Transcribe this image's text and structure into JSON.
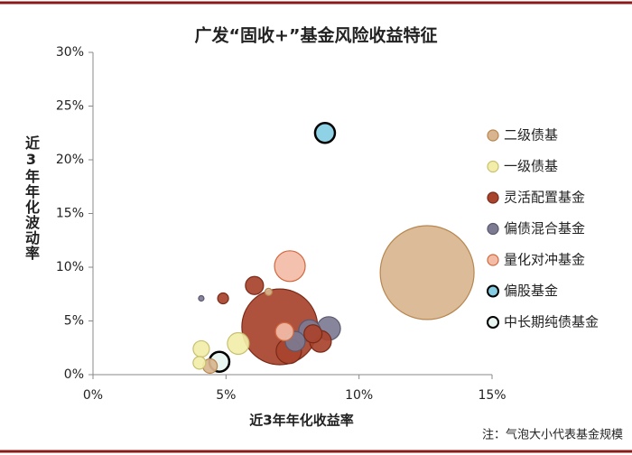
{
  "chart_data": {
    "type": "bubble",
    "title": "广发“固收+”基金风险收益特征",
    "xlabel": "近3年年化收益率",
    "ylabel": "近3年年化波动率",
    "note": "注：气泡大小代表基金规模",
    "xlim": [
      0,
      15
    ],
    "ylim": [
      0,
      30
    ],
    "xticks": [
      {
        "value": 0,
        "label": "0%"
      },
      {
        "value": 5,
        "label": "5%"
      },
      {
        "value": 10,
        "label": "10%"
      },
      {
        "value": 15,
        "label": "15%"
      }
    ],
    "yticks": [
      {
        "value": 0,
        "label": "0%"
      },
      {
        "value": 5,
        "label": "5%"
      },
      {
        "value": 10,
        "label": "10%"
      },
      {
        "value": 15,
        "label": "15%"
      },
      {
        "value": 20,
        "label": "20%"
      },
      {
        "value": 25,
        "label": "25%"
      },
      {
        "value": 30,
        "label": "30%"
      }
    ],
    "grid": false,
    "legend": "right",
    "series": [
      {
        "name": "二级债基",
        "color": "#d8b58f",
        "edgecolor": "#b8864f",
        "x": [
          12.56,
          6.6,
          4.4
        ],
        "values": [
          9.5,
          7.7,
          0.8
        ],
        "sizes": [
          2700,
          16,
          64
        ]
      },
      {
        "name": "一级债基",
        "color": "#f2eeaa",
        "edgecolor": "#c8c070",
        "x": [
          4.07,
          4.0,
          5.46
        ],
        "values": [
          2.4,
          1.1,
          2.9
        ],
        "sizes": [
          81,
          49,
          144
        ]
      },
      {
        "name": "灵活配置基金",
        "color": "#a8432c",
        "edgecolor": "#7a2a18",
        "x": [
          7.02,
          4.89,
          6.07,
          7.36,
          8.55,
          8.27
        ],
        "values": [
          4.45,
          7.1,
          8.3,
          2.2,
          3.1,
          3.8
        ],
        "sizes": [
          1760,
          36,
          100,
          196,
          144,
          100
        ]
      },
      {
        "name": "偏债混合基金",
        "color": "#7d7b92",
        "edgecolor": "#5a586e",
        "x": [
          4.07,
          8.86,
          8.14,
          7.6
        ],
        "values": [
          7.1,
          4.3,
          4.1,
          3.1
        ],
        "sizes": [
          9,
          169,
          144,
          121
        ]
      },
      {
        "name": "量化对冲基金",
        "color": "#f2bca6",
        "edgecolor": "#d0683f",
        "x": [
          7.4,
          7.2
        ],
        "values": [
          10.1,
          4.0
        ],
        "sizes": [
          289,
          100
        ]
      },
      {
        "name": "偏股基金",
        "color": "#86cde3",
        "edgecolor": "#000000",
        "x": [
          8.72
        ],
        "values": [
          22.5
        ],
        "sizes": [
          121
        ]
      },
      {
        "name": "中长期纯债基金",
        "color": "#e8f5f0",
        "edgecolor": "#000000",
        "x": [
          4.75
        ],
        "values": [
          1.2
        ],
        "sizes": [
          121
        ]
      }
    ]
  }
}
